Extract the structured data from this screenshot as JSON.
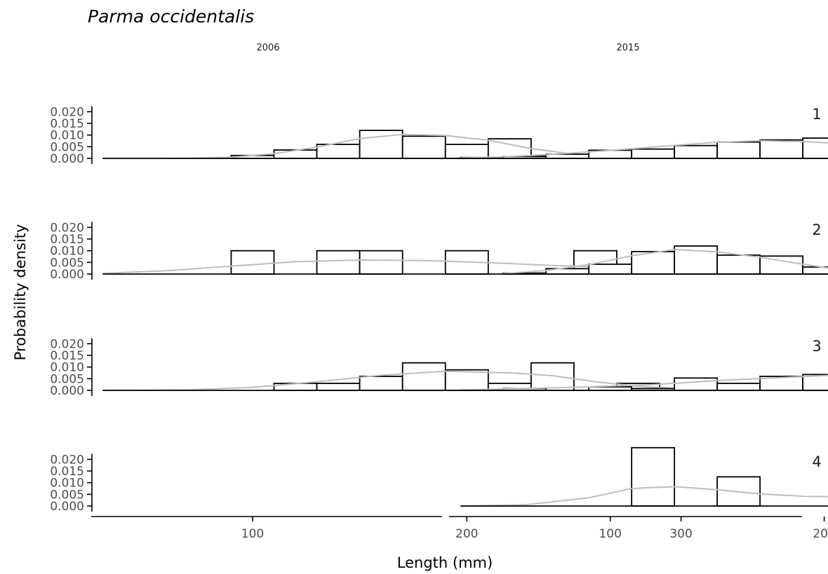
{
  "chart_data": {
    "type": "bar",
    "title": "Parma occidentalis",
    "xlabel": "Length (mm)",
    "ylabel": "Probability density",
    "xlim": [
      25,
      330
    ],
    "ylim": [
      0,
      0.02
    ],
    "x_ticks": [
      100,
      200,
      300
    ],
    "y_ticks": [
      0.0,
      0.005,
      0.01,
      0.015,
      0.02
    ],
    "y_tick_labels": [
      "0.000",
      "0.005",
      "0.010",
      "0.015",
      "0.020"
    ],
    "bin_width": 20,
    "columns": [
      "2006",
      "2015"
    ],
    "rows": [
      "1",
      "2",
      "3",
      "4"
    ],
    "grid": false,
    "panels": [
      {
        "row": "1",
        "column": "2006",
        "bins": [
          [
            90,
            0.00125
          ],
          [
            110,
            0.0036
          ],
          [
            130,
            0.006
          ],
          [
            150,
            0.012
          ],
          [
            170,
            0.0095
          ],
          [
            190,
            0.006
          ],
          [
            210,
            0.0084
          ],
          [
            230,
            0.00125
          ],
          [
            270,
            0.00125
          ],
          [
            290,
            0.00125
          ]
        ],
        "density": [
          [
            30,
            0
          ],
          [
            70,
            0.0001
          ],
          [
            90,
            0.0005
          ],
          [
            110,
            0.002
          ],
          [
            130,
            0.0048
          ],
          [
            150,
            0.0085
          ],
          [
            170,
            0.0103
          ],
          [
            190,
            0.0098
          ],
          [
            210,
            0.0078
          ],
          [
            230,
            0.0042
          ],
          [
            250,
            0.0018
          ],
          [
            270,
            0.0011
          ],
          [
            290,
            0.0009
          ],
          [
            310,
            0.0004
          ],
          [
            330,
            0
          ]
        ]
      },
      {
        "row": "1",
        "column": "2015",
        "bins": [
          [
            30,
            0.0004
          ],
          [
            50,
            0.0008
          ],
          [
            70,
            0.0018
          ],
          [
            90,
            0.0035
          ],
          [
            110,
            0.004
          ],
          [
            130,
            0.0055
          ],
          [
            150,
            0.007
          ],
          [
            170,
            0.0079
          ],
          [
            190,
            0.0087
          ],
          [
            210,
            0.0043
          ],
          [
            230,
            0.0038
          ],
          [
            250,
            0.0022
          ],
          [
            270,
            0.0008
          ],
          [
            310,
            0.0004
          ]
        ],
        "density": [
          [
            30,
            0.0002
          ],
          [
            50,
            0.0007
          ],
          [
            70,
            0.0016
          ],
          [
            90,
            0.0028
          ],
          [
            110,
            0.0041
          ],
          [
            130,
            0.0056
          ],
          [
            150,
            0.0069
          ],
          [
            170,
            0.0076
          ],
          [
            190,
            0.0072
          ],
          [
            210,
            0.0063
          ],
          [
            230,
            0.0046
          ],
          [
            250,
            0.0028
          ],
          [
            270,
            0.0013
          ],
          [
            290,
            0.0005
          ],
          [
            310,
            0.0002
          ],
          [
            330,
            0.0001
          ]
        ]
      },
      {
        "row": "2",
        "column": "2006",
        "bins": [
          [
            90,
            0.01
          ],
          [
            130,
            0.01
          ],
          [
            150,
            0.01
          ],
          [
            190,
            0.01
          ],
          [
            250,
            0.01
          ]
        ],
        "density": [
          [
            30,
            0.0003
          ],
          [
            60,
            0.0014
          ],
          [
            90,
            0.0034
          ],
          [
            120,
            0.0053
          ],
          [
            150,
            0.006
          ],
          [
            180,
            0.0058
          ],
          [
            210,
            0.0049
          ],
          [
            240,
            0.0037
          ],
          [
            270,
            0.0028
          ],
          [
            300,
            0.0014
          ],
          [
            330,
            0.0003
          ]
        ]
      },
      {
        "row": "2",
        "column": "2015",
        "bins": [
          [
            50,
            0.0004
          ],
          [
            70,
            0.0023
          ],
          [
            90,
            0.0042
          ],
          [
            110,
            0.0096
          ],
          [
            130,
            0.012
          ],
          [
            150,
            0.0081
          ],
          [
            170,
            0.0077
          ],
          [
            190,
            0.003
          ],
          [
            210,
            0.0008
          ],
          [
            250,
            0.0004
          ],
          [
            270,
            0.0004
          ],
          [
            290,
            0.0008
          ],
          [
            310,
            0.0004
          ]
        ],
        "density": [
          [
            50,
            0.0002
          ],
          [
            70,
            0.0015
          ],
          [
            90,
            0.004
          ],
          [
            110,
            0.0078
          ],
          [
            130,
            0.0105
          ],
          [
            150,
            0.0095
          ],
          [
            170,
            0.0072
          ],
          [
            190,
            0.0042
          ],
          [
            210,
            0.0015
          ],
          [
            230,
            0.0007
          ],
          [
            250,
            0.0005
          ],
          [
            270,
            0.0006
          ],
          [
            290,
            0.0006
          ],
          [
            310,
            0.0005
          ],
          [
            330,
            0.0002
          ]
        ]
      },
      {
        "row": "3",
        "column": "2006",
        "bins": [
          [
            110,
            0.003
          ],
          [
            130,
            0.003
          ],
          [
            150,
            0.006
          ],
          [
            170,
            0.0118
          ],
          [
            190,
            0.0088
          ],
          [
            210,
            0.003
          ],
          [
            230,
            0.0118
          ],
          [
            270,
            0.003
          ]
        ],
        "density": [
          [
            30,
            0
          ],
          [
            70,
            0.0002
          ],
          [
            100,
            0.0013
          ],
          [
            130,
            0.0037
          ],
          [
            160,
            0.0065
          ],
          [
            190,
            0.0082
          ],
          [
            220,
            0.0075
          ],
          [
            240,
            0.0063
          ],
          [
            260,
            0.0037
          ],
          [
            280,
            0.0018
          ],
          [
            300,
            0.0006
          ],
          [
            330,
            0
          ]
        ]
      },
      {
        "row": "3",
        "column": "2015",
        "bins": [
          [
            50,
            0.0008
          ],
          [
            90,
            0.0015
          ],
          [
            110,
            0.0008
          ],
          [
            130,
            0.0053
          ],
          [
            150,
            0.003
          ],
          [
            170,
            0.006
          ],
          [
            190,
            0.0068
          ],
          [
            210,
            0.0083
          ],
          [
            230,
            0.0083
          ],
          [
            250,
            0.0023
          ],
          [
            270,
            0.0023
          ],
          [
            290,
            0.003
          ],
          [
            310,
            0.0015
          ]
        ],
        "density": [
          [
            30,
            0.0002
          ],
          [
            60,
            0.0008
          ],
          [
            90,
            0.0015
          ],
          [
            120,
            0.0025
          ],
          [
            150,
            0.0042
          ],
          [
            180,
            0.0055
          ],
          [
            210,
            0.0068
          ],
          [
            230,
            0.007
          ],
          [
            250,
            0.0062
          ],
          [
            270,
            0.0046
          ],
          [
            290,
            0.0028
          ],
          [
            310,
            0.0015
          ],
          [
            330,
            0.0003
          ]
        ]
      },
      {
        "row": "4",
        "column": "2006",
        "bins": [],
        "density": []
      },
      {
        "row": "4",
        "column": "2015",
        "bins": [
          [
            110,
            0.025
          ],
          [
            130,
            0
          ],
          [
            150,
            0.0125
          ],
          [
            210,
            0.0125
          ]
        ],
        "density": [
          [
            30,
            0
          ],
          [
            60,
            0.0005
          ],
          [
            90,
            0.0035
          ],
          [
            110,
            0.0075
          ],
          [
            130,
            0.0083
          ],
          [
            150,
            0.007
          ],
          [
            170,
            0.0052
          ],
          [
            190,
            0.0042
          ],
          [
            210,
            0.0039
          ],
          [
            230,
            0.0037
          ],
          [
            250,
            0.0027
          ],
          [
            270,
            0.0014
          ],
          [
            300,
            0.0004
          ],
          [
            330,
            0
          ]
        ]
      }
    ]
  }
}
